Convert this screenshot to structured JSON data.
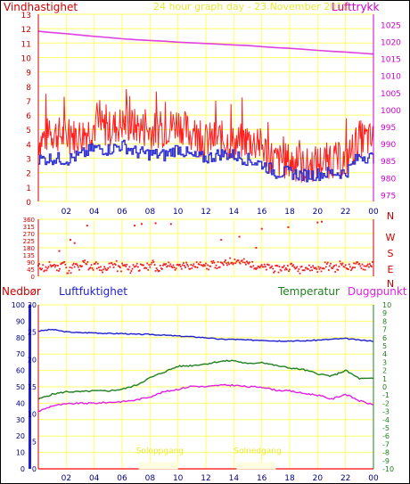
{
  "chart_data": [
    {
      "type": "line",
      "title": "24 hour graph day - 23.November 2018",
      "left_axis_label": "Vindhastighet",
      "right_axis_label": "Lufttrykk",
      "x_ticks": [
        "02",
        "04",
        "06",
        "08",
        "10",
        "12",
        "14",
        "16",
        "18",
        "20",
        "22",
        "00"
      ],
      "y_left_ticks": [
        "0",
        "1",
        "2",
        "3",
        "4",
        "5",
        "6",
        "7",
        "8",
        "9",
        "10",
        "11",
        "12",
        "13"
      ],
      "y_left_range": [
        0,
        13
      ],
      "y_right_ticks": [
        "975",
        "980",
        "985",
        "990",
        "995",
        "1000",
        "1005",
        "1010",
        "1015",
        "1020",
        "1025"
      ],
      "y_right_range": [
        973,
        1028
      ],
      "colors": {
        "wind_gust": "#ff2020",
        "wind_avg": "#3030d0",
        "pressure": "#e040e0",
        "grid": "#ffff66",
        "left_axis": "#cc0000",
        "right_axis": "#cc00cc",
        "title": "#e8e830"
      },
      "series": [
        {
          "x_hours": [
            0,
            1,
            2,
            3,
            4,
            5,
            6,
            7,
            8,
            9,
            10,
            11,
            12,
            13,
            14,
            15,
            16,
            17,
            18,
            19,
            20,
            21,
            22,
            23,
            24
          ],
          "values": [
            4.2,
            4.8,
            4.5,
            4.6,
            5.2,
            5.0,
            5.4,
            5.2,
            4.9,
            5.0,
            5.5,
            4.6,
            4.2,
            4.4,
            4.0,
            4.3,
            3.8,
            2.8,
            2.8,
            2.4,
            2.7,
            2.9,
            2.8,
            4.4,
            4.2
          ]
        },
        {
          "x_hours": [
            0,
            1,
            2,
            3,
            4,
            5,
            6,
            7,
            8,
            9,
            10,
            11,
            12,
            13,
            14,
            15,
            16,
            17,
            18,
            19,
            20,
            21,
            22,
            23,
            24
          ],
          "values": [
            2.9,
            3.0,
            2.9,
            3.2,
            3.7,
            3.6,
            3.9,
            3.4,
            3.3,
            3.2,
            3.7,
            3.1,
            3.0,
            3.3,
            3.2,
            2.9,
            2.6,
            2.0,
            2.0,
            1.8,
            1.9,
            2.0,
            2.0,
            3.2,
            3.0
          ]
        },
        {
          "x_hours": [
            0,
            1,
            2,
            3,
            4,
            5,
            6,
            7,
            8,
            9,
            10,
            11,
            12,
            13,
            14,
            15,
            16,
            17,
            18,
            19,
            20,
            21,
            22,
            23,
            24
          ],
          "values": [
            1023,
            1022.6,
            1022.3,
            1021.9,
            1021.5,
            1021.2,
            1020.8,
            1020.5,
            1020.3,
            1020.1,
            1019.8,
            1019.6,
            1019.4,
            1019.2,
            1019.0,
            1018.8,
            1018.5,
            1018.2,
            1018.0,
            1017.7,
            1017.4,
            1017.1,
            1016.9,
            1016.6,
            1016.3
          ]
        }
      ]
    },
    {
      "type": "scatter",
      "right_labels": [
        "N",
        "W",
        "S",
        "E",
        "N"
      ],
      "y_ticks": [
        "360",
        "315",
        "270",
        "225",
        "180",
        "135",
        "90",
        "45",
        "0"
      ],
      "y_range": [
        0,
        360
      ],
      "x_ticks": [
        "02",
        "04",
        "06",
        "08",
        "10",
        "12",
        "14",
        "16",
        "18",
        "20",
        "22",
        "00"
      ],
      "series": [
        {
          "x_hours": [
            0.2,
            0.6,
            1.0,
            1.4,
            1.8,
            2.2,
            2.6,
            3.0,
            3.4,
            3.8,
            4.2,
            4.6,
            5.0,
            5.4,
            5.8,
            6.2,
            6.6,
            7.0,
            7.4,
            7.8,
            8.2,
            8.6,
            9.0,
            9.4,
            9.8,
            10.2,
            10.6,
            11.0,
            11.4,
            11.8,
            12.2,
            12.6,
            13.0,
            13.4,
            13.8,
            14.2,
            14.6,
            15.0,
            15.4,
            15.8,
            16.2,
            16.6,
            17.0,
            17.4,
            17.8,
            18.2,
            18.6,
            19.0,
            19.4,
            19.8,
            20.2,
            20.6,
            21.0,
            21.4,
            21.8,
            22.2,
            22.6,
            23.0,
            23.4,
            23.8
          ],
          "values": [
            60,
            45,
            70,
            55,
            80,
            40,
            65,
            50,
            90,
            55,
            70,
            45,
            60,
            75,
            50,
            65,
            40,
            70,
            55,
            60,
            80,
            50,
            65,
            70,
            55,
            60,
            75,
            65,
            70,
            85,
            60,
            75,
            70,
            80,
            95,
            100,
            90,
            80,
            70,
            65,
            55,
            60,
            45,
            50,
            55,
            65,
            40,
            60,
            50,
            55,
            45,
            70,
            60,
            50,
            80,
            55,
            65,
            70,
            60,
            75
          ]
        },
        {
          "x_hours": [
            1.5,
            2.3,
            2.6,
            3.5,
            6.9,
            7.4,
            8.4,
            9.5,
            13.1,
            14.4,
            15.6,
            16.0,
            17.9,
            20.0,
            20.3
          ],
          "values": [
            160,
            230,
            210,
            320,
            320,
            330,
            335,
            330,
            230,
            250,
            180,
            300,
            310,
            340,
            345
          ]
        }
      ]
    },
    {
      "type": "line",
      "labels": {
        "precip": "Nedbør",
        "humidity": "Luftfuktighet",
        "temperature": "Temperatur",
        "dewpoint": "Duggpunkt"
      },
      "y_precip_ticks": [
        "0",
        "10",
        "20",
        "30",
        "40",
        "50",
        "60",
        "70",
        "80",
        "90",
        "100"
      ],
      "y_precip_range": [
        0,
        100
      ],
      "y_second_ticks": [
        "0",
        "5",
        "10",
        "15",
        "20",
        "25",
        "30"
      ],
      "y_second_range": [
        0,
        30
      ],
      "y_temp_ticks": [
        "-10",
        "-9",
        "-8",
        "-7",
        "-6",
        "-5",
        "-4",
        "-3",
        "-2",
        "-1",
        "0",
        "1",
        "2",
        "3",
        "4",
        "5",
        "6",
        "7",
        "8",
        "9",
        "10"
      ],
      "y_temp_range": [
        -10,
        10
      ],
      "x_ticks": [
        "02",
        "04",
        "06",
        "08",
        "10",
        "12",
        "14",
        "16",
        "18",
        "20",
        "22",
        "00"
      ],
      "annotations": [
        {
          "text": "Soloppgang",
          "x_hour": 8.6,
          "y_temp": -8.1
        },
        {
          "text": "Solnedgang",
          "x_hour": 15.6,
          "y_temp": -8.1
        }
      ],
      "colors": {
        "precip": "#ff3030",
        "humidity": "#2020d0",
        "temperature": "#208020",
        "dewpoint": "#e020e0",
        "sun": "#e8e830"
      },
      "series": [
        {
          "x_hours": [
            0,
            24
          ],
          "values": [
            0,
            0
          ]
        },
        {
          "x_hours": [
            0,
            1,
            2,
            3,
            4,
            5,
            6,
            7,
            8,
            9,
            10,
            11,
            12,
            13,
            14,
            15,
            16,
            17,
            18,
            19,
            20,
            21,
            22,
            23,
            24
          ],
          "values": [
            84,
            85,
            83.5,
            83,
            83,
            82.5,
            82.5,
            82,
            82,
            81.5,
            81,
            80.5,
            80,
            79,
            79,
            78.5,
            78.5,
            78,
            78,
            78,
            78.5,
            79,
            79.5,
            78.5,
            78
          ]
        },
        {
          "x_hours": [
            0,
            1,
            2,
            3,
            4,
            5,
            6,
            7,
            8,
            9,
            10,
            11,
            12,
            13,
            14,
            15,
            16,
            17,
            18,
            19,
            20,
            21,
            22,
            23,
            24
          ],
          "values": [
            -1.5,
            -0.9,
            -0.6,
            -0.6,
            -0.5,
            -0.5,
            -0.3,
            0.2,
            1.1,
            1.8,
            2.5,
            2.6,
            2.8,
            3.1,
            3.2,
            2.8,
            3.0,
            2.6,
            2.3,
            2.1,
            1.6,
            1.3,
            2.0,
            1.0,
            1.0
          ]
        },
        {
          "x_hours": [
            0,
            1,
            2,
            3,
            4,
            5,
            6,
            7,
            8,
            9,
            10,
            11,
            12,
            13,
            14,
            15,
            16,
            17,
            18,
            19,
            20,
            21,
            22,
            23,
            24
          ],
          "values": [
            -3.0,
            -2.3,
            -2.1,
            -2.0,
            -2.0,
            -1.9,
            -1.8,
            -1.6,
            -1.2,
            -0.6,
            -0.3,
            0.1,
            0.0,
            0.2,
            0.2,
            0.0,
            0.0,
            -0.4,
            -0.5,
            -0.8,
            -1.0,
            -1.5,
            -0.9,
            -1.7,
            -2.2
          ]
        }
      ]
    }
  ]
}
